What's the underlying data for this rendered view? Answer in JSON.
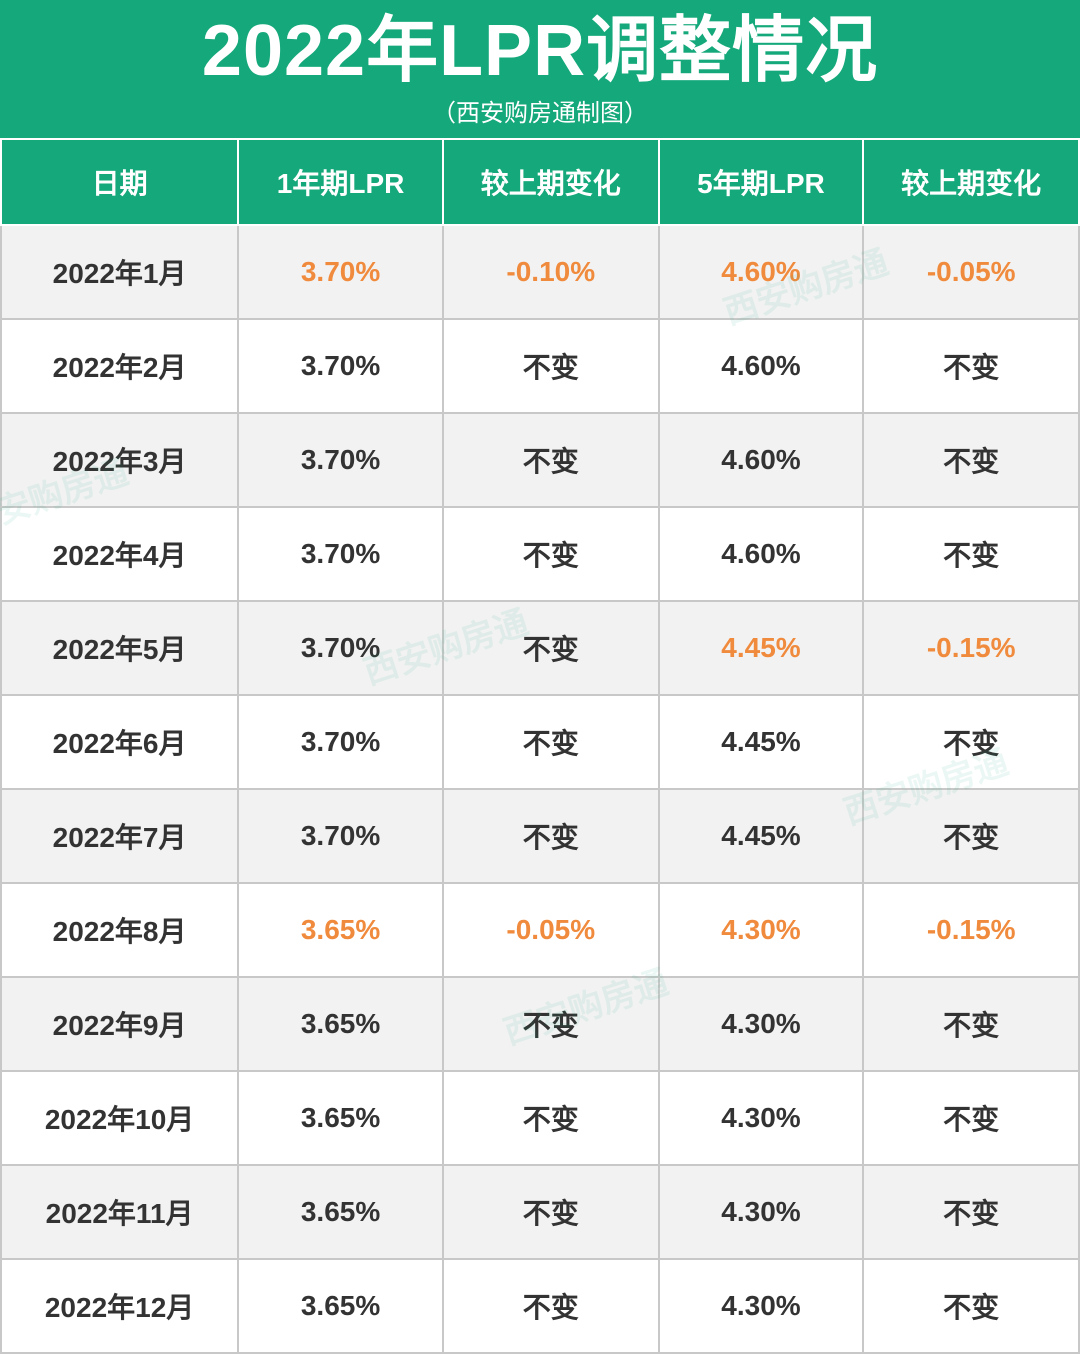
{
  "styling": {
    "header_bg": "#14a87a",
    "header_text_color": "#ffffff",
    "title_fontsize": 72,
    "subtitle_fontsize": 24,
    "col_header_bg": "#14a87a",
    "col_header_fontsize": 28,
    "cell_fontsize": 28,
    "cell_text_color": "#333333",
    "highlight_color": "#f08a3c",
    "row_alt_bg": "#f2f2f2",
    "row_bg": "#ffffff",
    "border_color_header": "#ffffff",
    "border_color_body": "#c8c8c8",
    "col_widths_pct": [
      22,
      19,
      20,
      19,
      20
    ],
    "watermark_text": "西安购房通",
    "watermark_color": "#14a87a",
    "watermark_opacity": 0.08
  },
  "title": "2022年LPR调整情况",
  "subtitle": "（西安购房通制图）",
  "columns": [
    "日期",
    "1年期LPR",
    "较上期变化",
    "5年期LPR",
    "较上期变化"
  ],
  "rows": [
    {
      "cells": [
        "2022年1月",
        "3.70%",
        "-0.10%",
        "4.60%",
        "-0.05%"
      ],
      "hl": [
        false,
        true,
        true,
        true,
        true
      ]
    },
    {
      "cells": [
        "2022年2月",
        "3.70%",
        "不变",
        "4.60%",
        "不变"
      ],
      "hl": [
        false,
        false,
        false,
        false,
        false
      ]
    },
    {
      "cells": [
        "2022年3月",
        "3.70%",
        "不变",
        "4.60%",
        "不变"
      ],
      "hl": [
        false,
        false,
        false,
        false,
        false
      ]
    },
    {
      "cells": [
        "2022年4月",
        "3.70%",
        "不变",
        "4.60%",
        "不变"
      ],
      "hl": [
        false,
        false,
        false,
        false,
        false
      ]
    },
    {
      "cells": [
        "2022年5月",
        "3.70%",
        "不变",
        "4.45%",
        "-0.15%"
      ],
      "hl": [
        false,
        false,
        false,
        true,
        true
      ]
    },
    {
      "cells": [
        "2022年6月",
        "3.70%",
        "不变",
        "4.45%",
        "不变"
      ],
      "hl": [
        false,
        false,
        false,
        false,
        false
      ]
    },
    {
      "cells": [
        "2022年7月",
        "3.70%",
        "不变",
        "4.45%",
        "不变"
      ],
      "hl": [
        false,
        false,
        false,
        false,
        false
      ]
    },
    {
      "cells": [
        "2022年8月",
        "3.65%",
        "-0.05%",
        "4.30%",
        "-0.15%"
      ],
      "hl": [
        false,
        true,
        true,
        true,
        true
      ]
    },
    {
      "cells": [
        "2022年9月",
        "3.65%",
        "不变",
        "4.30%",
        "不变"
      ],
      "hl": [
        false,
        false,
        false,
        false,
        false
      ]
    },
    {
      "cells": [
        "2022年10月",
        "3.65%",
        "不变",
        "4.30%",
        "不变"
      ],
      "hl": [
        false,
        false,
        false,
        false,
        false
      ]
    },
    {
      "cells": [
        "2022年11月",
        "3.65%",
        "不变",
        "4.30%",
        "不变"
      ],
      "hl": [
        false,
        false,
        false,
        false,
        false
      ]
    },
    {
      "cells": [
        "2022年12月",
        "3.65%",
        "不变",
        "4.30%",
        "不变"
      ],
      "hl": [
        false,
        false,
        false,
        false,
        false
      ]
    }
  ]
}
